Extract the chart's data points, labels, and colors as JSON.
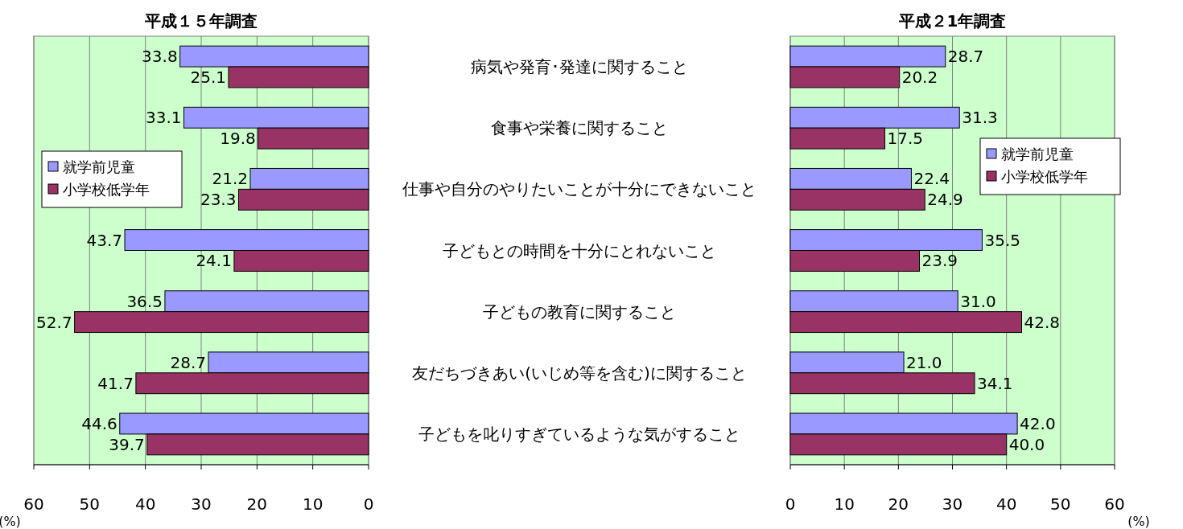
{
  "chart_data": [
    {
      "type": "bar",
      "orientation": "horizontal",
      "title": "平成１５年調査",
      "xlabel": "(%)",
      "xlim": [
        60,
        0
      ],
      "xticks": [
        60,
        50,
        40,
        30,
        20,
        10,
        0
      ],
      "grid": "x",
      "legend": "left",
      "tick_labels": "x",
      "categories": [
        null,
        null,
        null,
        null,
        null,
        null,
        null
      ],
      "series": [
        {
          "name": "就学前児童",
          "color": "#9999ff",
          "values": [
            33.8,
            33.1,
            21.2,
            43.7,
            36.5,
            28.7,
            44.6
          ],
          "value_labels": [
            "33.8",
            "33.1",
            "21.2",
            "43.7",
            "36.5",
            "28.7",
            "44.6"
          ]
        },
        {
          "name": "小学校低学年",
          "color": "#993366",
          "values": [
            25.1,
            19.8,
            23.3,
            24.1,
            52.7,
            41.7,
            39.7
          ],
          "value_labels": [
            "25.1",
            "19.8",
            "23.3",
            "24.1",
            "52.7",
            "41.7",
            "39.7"
          ]
        }
      ]
    },
    {
      "type": "bar",
      "orientation": "horizontal",
      "title": "平成２1年調査",
      "xlabel": "(%)",
      "xlim": [
        0,
        60
      ],
      "xticks": [
        0,
        10,
        20,
        30,
        40,
        50,
        60
      ],
      "grid": "x",
      "legend": "right",
      "categories": [
        "病気や発育･発達に関すること",
        "食事や栄養に関すること",
        "仕事や自分のやりたいことが十分にできないこと",
        "子どもとの時間を十分にとれないこと",
        "子どもの教育に関すること",
        "友だちづきあい(いじめ等を含む)に関すること",
        "子どもを叱りすぎているような気がすること"
      ],
      "series": [
        {
          "name": "就学前児童",
          "color": "#9999ff",
          "values": [
            28.7,
            31.3,
            22.4,
            35.5,
            31.0,
            21.0,
            42.0
          ],
          "value_labels": [
            "28.7",
            "31.3",
            "22.4",
            "35.5",
            "31.0",
            "21.0",
            "42.0"
          ]
        },
        {
          "name": "小学校低学年",
          "color": "#993366",
          "values": [
            20.2,
            17.5,
            24.9,
            23.9,
            42.8,
            34.1,
            40.0
          ],
          "value_labels": [
            "20.2",
            "17.5",
            "24.9",
            "23.9",
            "42.8",
            "34.1",
            "40.0"
          ]
        }
      ]
    }
  ]
}
